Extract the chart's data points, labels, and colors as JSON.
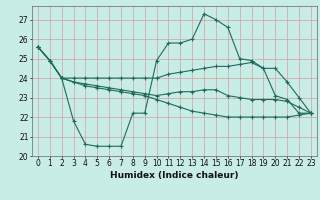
{
  "title": "",
  "xlabel": "Humidex (Indice chaleur)",
  "bg_color": "#c8ece6",
  "grid_color": "#d4a0a0",
  "line_color": "#1f6b5a",
  "xlim": [
    -0.5,
    23.5
  ],
  "ylim": [
    20,
    27.7
  ],
  "yticks": [
    20,
    21,
    22,
    23,
    24,
    25,
    26,
    27
  ],
  "xticks": [
    0,
    1,
    2,
    3,
    4,
    5,
    6,
    7,
    8,
    9,
    10,
    11,
    12,
    13,
    14,
    15,
    16,
    17,
    18,
    19,
    20,
    21,
    22,
    23
  ],
  "series": [
    [
      25.6,
      24.9,
      24.0,
      21.8,
      20.6,
      20.5,
      20.5,
      20.5,
      22.2,
      22.2,
      24.9,
      25.8,
      25.8,
      26.0,
      27.3,
      27.0,
      26.6,
      25.0,
      24.9,
      24.5,
      23.1,
      22.9,
      22.2,
      22.2
    ],
    [
      25.6,
      24.9,
      24.0,
      24.0,
      24.0,
      24.0,
      24.0,
      24.0,
      24.0,
      24.0,
      24.0,
      24.2,
      24.3,
      24.4,
      24.5,
      24.6,
      24.6,
      24.7,
      24.8,
      24.5,
      24.5,
      23.8,
      23.0,
      22.2
    ],
    [
      25.6,
      24.9,
      24.0,
      23.8,
      23.7,
      23.6,
      23.5,
      23.4,
      23.3,
      23.2,
      23.1,
      23.2,
      23.3,
      23.3,
      23.4,
      23.4,
      23.1,
      23.0,
      22.9,
      22.9,
      22.9,
      22.8,
      22.5,
      22.2
    ],
    [
      25.6,
      24.9,
      24.0,
      23.8,
      23.6,
      23.5,
      23.4,
      23.3,
      23.2,
      23.1,
      22.9,
      22.7,
      22.5,
      22.3,
      22.2,
      22.1,
      22.0,
      22.0,
      22.0,
      22.0,
      22.0,
      22.0,
      22.1,
      22.2
    ]
  ]
}
